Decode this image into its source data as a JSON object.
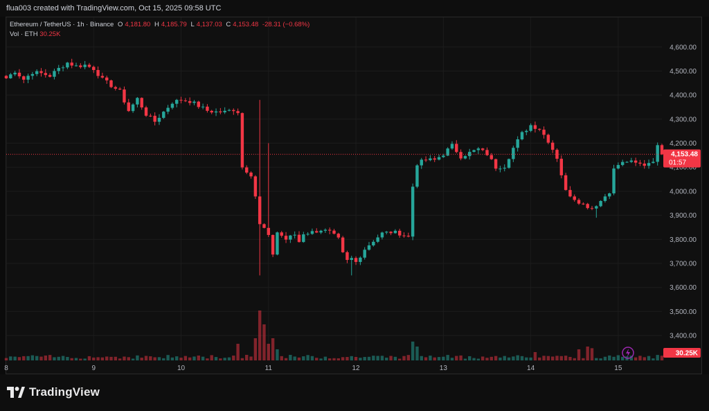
{
  "header": {
    "credit": "flua003 created with TradingView.com, Oct 15, 2025 09:58 UTC"
  },
  "legend": {
    "symbol": "Ethereum / TetherUS · 1h · Binance",
    "open_label": "O",
    "open": "4,181.80",
    "high_label": "H",
    "high": "4,185.79",
    "low_label": "L",
    "low": "4,137.03",
    "close_label": "C",
    "close": "4,153.48",
    "change": "-28.31 (−0.68%)",
    "vol_label": "Vol · ETH",
    "vol": "30.25K"
  },
  "price_tag": {
    "price": "4,153.48",
    "countdown": "01:57",
    "vol_badge": "30.25K"
  },
  "brand": {
    "name": "TradingView"
  },
  "colors": {
    "up": "#26a69a",
    "down": "#f23645",
    "bg": "#101010",
    "grid": "#1c1c1c",
    "text": "#d1d4dc",
    "accent": "#9c27b0"
  },
  "chart_data": {
    "type": "candlestick",
    "title": "Ethereum / TetherUS · 1h · Binance",
    "y_ticks": [
      4600,
      4500,
      4400,
      4300,
      4200,
      4100,
      4000,
      3900,
      3800,
      3700,
      3600,
      3500,
      3400
    ],
    "y_tick_labels": [
      "4,600.00",
      "4,500.00",
      "4,400.00",
      "4,300.00",
      "4,200.00",
      "4,100.00",
      "4,000.00",
      "3,900.00",
      "3,800.00",
      "3,700.00",
      "3,600.00",
      "3,500.00",
      "3,400.00"
    ],
    "ylim": [
      3360,
      4680
    ],
    "x_ticks": [
      {
        "label": "8",
        "index": 0
      },
      {
        "label": "9",
        "index": 20
      },
      {
        "label": "10",
        "index": 40
      },
      {
        "label": "11",
        "index": 60
      },
      {
        "label": "12",
        "index": 80
      },
      {
        "label": "13",
        "index": 100
      },
      {
        "label": "14",
        "index": 120
      },
      {
        "label": "15",
        "index": 140
      }
    ],
    "last_price": 4153.48,
    "price_anchors": [
      [
        0,
        4470
      ],
      [
        2,
        4500
      ],
      [
        4,
        4465
      ],
      [
        6,
        4495
      ],
      [
        8,
        4490
      ],
      [
        10,
        4480
      ],
      [
        12,
        4510
      ],
      [
        14,
        4535
      ],
      [
        16,
        4520
      ],
      [
        18,
        4525
      ],
      [
        20,
        4510
      ],
      [
        22,
        4465
      ],
      [
        24,
        4440
      ],
      [
        26,
        4415
      ],
      [
        28,
        4335
      ],
      [
        30,
        4385
      ],
      [
        32,
        4320
      ],
      [
        34,
        4290
      ],
      [
        36,
        4330
      ],
      [
        38,
        4370
      ],
      [
        40,
        4380
      ],
      [
        42,
        4375
      ],
      [
        44,
        4355
      ],
      [
        46,
        4335
      ],
      [
        48,
        4330
      ],
      [
        50,
        4330
      ],
      [
        52,
        4340
      ],
      [
        53,
        4330
      ],
      [
        54,
        4100
      ],
      [
        56,
        4070
      ],
      [
        57,
        3980
      ],
      [
        58,
        3860
      ],
      [
        59,
        3845
      ],
      [
        60,
        3810
      ],
      [
        61,
        3740
      ],
      [
        62,
        3830
      ],
      [
        64,
        3800
      ],
      [
        66,
        3820
      ],
      [
        67,
        3790
      ],
      [
        68,
        3825
      ],
      [
        70,
        3830
      ],
      [
        72,
        3840
      ],
      [
        74,
        3830
      ],
      [
        76,
        3800
      ],
      [
        77,
        3740
      ],
      [
        78,
        3710
      ],
      [
        79,
        3720
      ],
      [
        80,
        3705
      ],
      [
        82,
        3760
      ],
      [
        84,
        3795
      ],
      [
        86,
        3825
      ],
      [
        88,
        3830
      ],
      [
        90,
        3825
      ],
      [
        92,
        3810
      ],
      [
        93,
        4020
      ],
      [
        94,
        4115
      ],
      [
        96,
        4130
      ],
      [
        98,
        4130
      ],
      [
        100,
        4155
      ],
      [
        102,
        4190
      ],
      [
        104,
        4145
      ],
      [
        106,
        4160
      ],
      [
        108,
        4175
      ],
      [
        110,
        4155
      ],
      [
        112,
        4100
      ],
      [
        114,
        4105
      ],
      [
        116,
        4180
      ],
      [
        118,
        4240
      ],
      [
        120,
        4275
      ],
      [
        122,
        4260
      ],
      [
        124,
        4210
      ],
      [
        126,
        4140
      ],
      [
        128,
        4000
      ],
      [
        130,
        3970
      ],
      [
        132,
        3945
      ],
      [
        134,
        3930
      ],
      [
        136,
        3960
      ],
      [
        138,
        4000
      ],
      [
        139,
        4090
      ],
      [
        140,
        4110
      ],
      [
        142,
        4125
      ],
      [
        144,
        4115
      ],
      [
        146,
        4110
      ],
      [
        148,
        4130
      ],
      [
        149,
        4185
      ],
      [
        150,
        4153.48
      ]
    ],
    "volume_ylim": [
      0,
      100
    ],
    "volume_spikes": [
      [
        53,
        30
      ],
      [
        55,
        10
      ],
      [
        57,
        40
      ],
      [
        58,
        90
      ],
      [
        59,
        65
      ],
      [
        60,
        30
      ],
      [
        61,
        40
      ],
      [
        62,
        20
      ],
      [
        93,
        34
      ],
      [
        94,
        25
      ],
      [
        121,
        15
      ],
      [
        131,
        20
      ],
      [
        133,
        25
      ],
      [
        134,
        22
      ]
    ]
  }
}
